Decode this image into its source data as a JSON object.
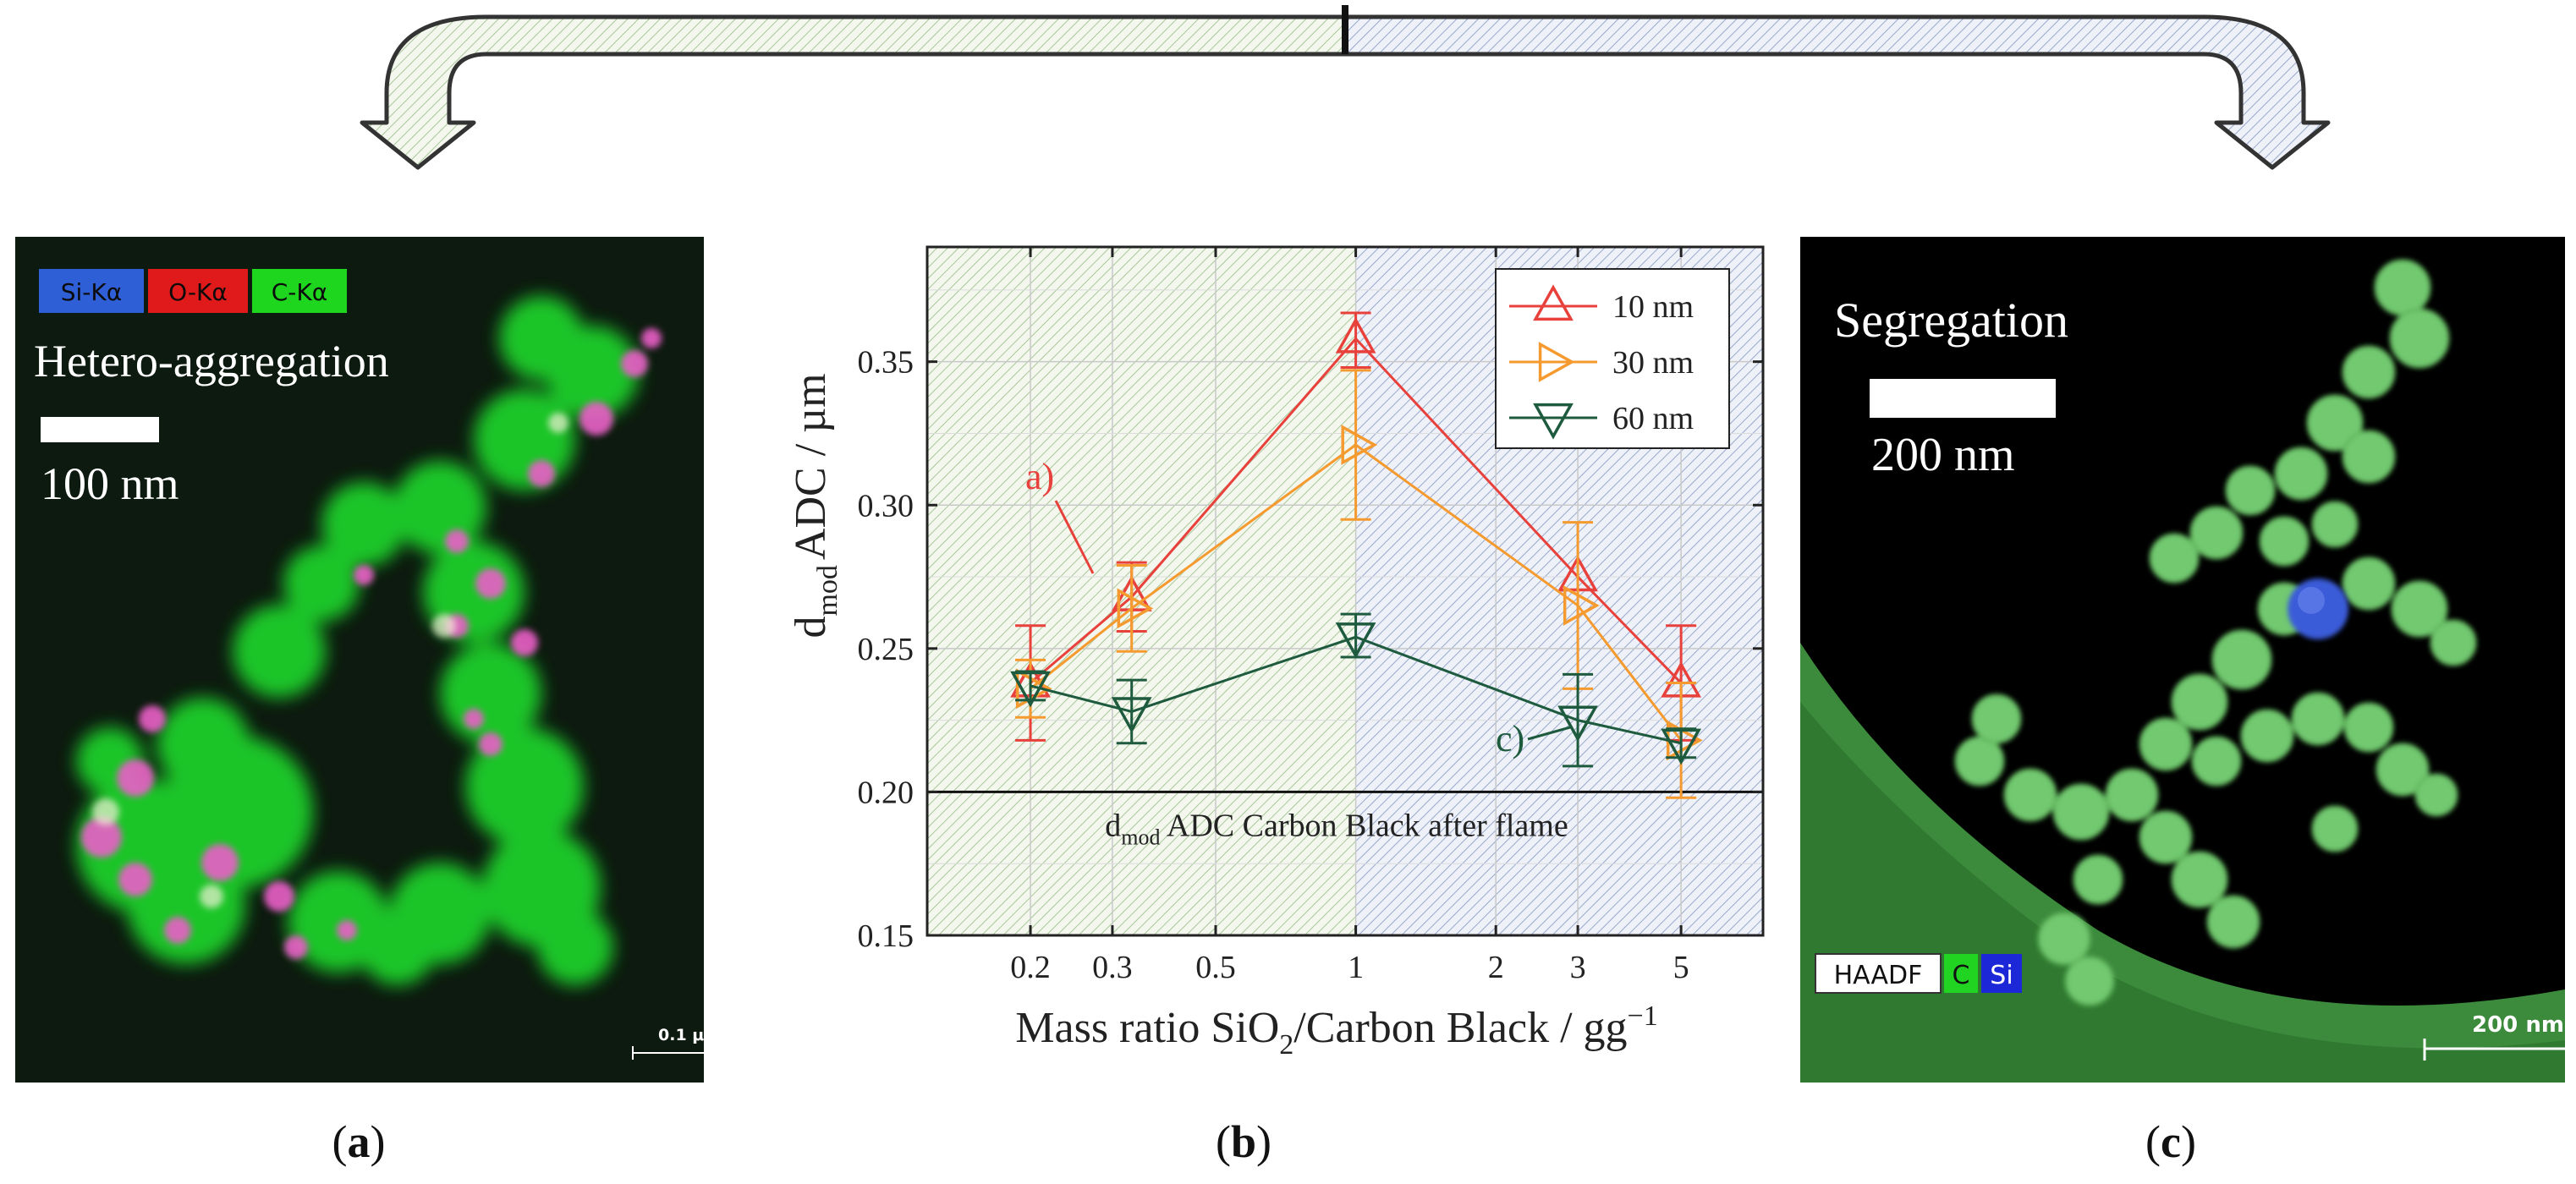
{
  "panel_a": {
    "legend": [
      "Si-Kα",
      "O-Kα",
      "C-Kα"
    ],
    "legend_colors": [
      "#2f5fd6",
      "#e01a1a",
      "#1fd61f"
    ],
    "title": "Hetero-aggregation",
    "scale_text": "100 nm",
    "corner_scale": "0.1 μ",
    "caption_open": "(",
    "caption_letter": "a",
    "caption_close": ")"
  },
  "panel_c": {
    "title": "Segregation",
    "scale_text": "200 nm",
    "legend": [
      "HAADF",
      "C",
      "Si"
    ],
    "corner_scale": "200 nm",
    "caption_open": "(",
    "caption_letter": "c",
    "caption_close": ")"
  },
  "panel_b": {
    "caption_open": "(",
    "caption_letter": "b",
    "caption_close": ")"
  },
  "chart_data": {
    "type": "line",
    "x": [
      0.2,
      0.33,
      1,
      3,
      5
    ],
    "xscale": "log",
    "xlim": [
      0.12,
      7.5
    ],
    "xticks": [
      0.2,
      0.3,
      0.5,
      1,
      2,
      3,
      5
    ],
    "xtick_labels": [
      "0.2",
      "0.3",
      "0.5",
      "1",
      "2",
      "3",
      "5"
    ],
    "ylim": [
      0.15,
      0.39
    ],
    "yticks": [
      0.15,
      0.2,
      0.25,
      0.3,
      0.35
    ],
    "ytick_labels": [
      "0.15",
      "0.20",
      "0.25",
      "0.30",
      "0.35"
    ],
    "series": [
      {
        "name": "10 nm",
        "color": "#e8413c",
        "marker": "triangle-up",
        "values": [
          0.238,
          0.268,
          0.358,
          0.275,
          0.238
        ],
        "err_low": [
          0.218,
          0.256,
          0.348,
          null,
          0.218
        ],
        "err_high": [
          0.258,
          0.28,
          0.367,
          null,
          0.258
        ]
      },
      {
        "name": "30 nm",
        "color": "#f59a2e",
        "marker": "triangle-right",
        "values": [
          0.236,
          0.264,
          0.321,
          0.265,
          0.218
        ],
        "err_low": [
          0.226,
          0.249,
          0.295,
          0.236,
          0.198
        ],
        "err_high": [
          0.246,
          0.279,
          0.347,
          0.294,
          0.238
        ]
      },
      {
        "name": "60 nm",
        "color": "#1e5a3e",
        "marker": "triangle-down",
        "values": [
          0.237,
          0.228,
          0.254,
          0.225,
          0.217
        ],
        "err_low": [
          0.232,
          0.217,
          0.247,
          0.209,
          0.212
        ],
        "err_high": [
          0.242,
          0.239,
          0.262,
          0.241,
          0.222
        ]
      }
    ],
    "reference_line": {
      "y": 0.2,
      "label_sub": "mod",
      "label_pre": "d",
      "label_post": " ADC Carbon Black after flame"
    },
    "ylabel": {
      "pre": "d",
      "sub": "mod",
      "post": "ADC / µm"
    },
    "xlabel": {
      "pre": "Mass ratio SiO",
      "sub": "2",
      "mid": "/Carbon Black / gg",
      "sup": "−1"
    },
    "annotations": [
      "a)",
      "c)"
    ],
    "legend_position": "top-right"
  }
}
